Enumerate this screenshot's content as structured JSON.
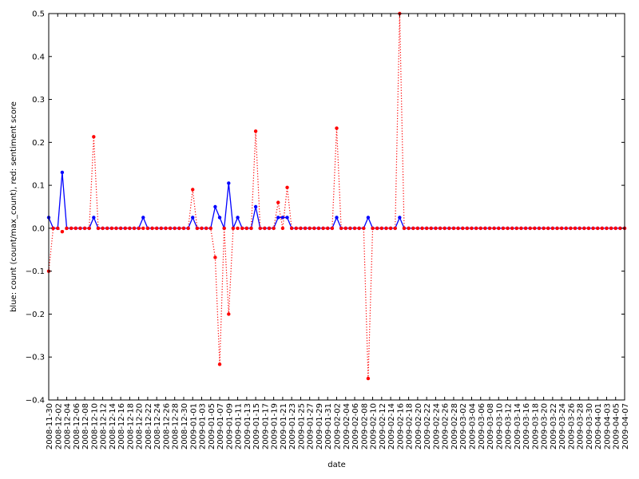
{
  "chart_data": {
    "type": "line",
    "xlabel": "date",
    "ylabel": "blue: count (count/max_count), red: sentiment score",
    "ylim": [
      -0.4,
      0.5
    ],
    "yticks": [
      "−0.4",
      "−0.3",
      "−0.2",
      "−0.1",
      "0.0",
      "0.1",
      "0.2",
      "0.3",
      "0.4",
      "0.5"
    ],
    "grid": false,
    "x_start": "2008-11-30",
    "x_end": "2009-04-07",
    "xtick_labels": [
      "2008-11-30",
      "2008-12-02",
      "2008-12-04",
      "2008-12-06",
      "2008-12-08",
      "2008-12-10",
      "2008-12-12",
      "2008-12-14",
      "2008-12-16",
      "2008-12-18",
      "2008-12-20",
      "2008-12-22",
      "2008-12-24",
      "2008-12-26",
      "2008-12-28",
      "2008-12-30",
      "2009-01-01",
      "2009-01-03",
      "2009-01-05",
      "2009-01-07",
      "2009-01-09",
      "2009-01-11",
      "2009-01-13",
      "2009-01-15",
      "2009-01-17",
      "2009-01-19",
      "2009-01-21",
      "2009-01-23",
      "2009-01-25",
      "2009-01-27",
      "2009-01-29",
      "2009-01-31",
      "2009-02-02",
      "2009-02-04",
      "2009-02-06",
      "2009-02-08",
      "2009-02-10",
      "2009-02-12",
      "2009-02-14",
      "2009-02-16",
      "2009-02-18",
      "2009-02-20",
      "2009-02-22",
      "2009-02-24",
      "2009-02-26",
      "2009-02-28",
      "2009-03-02",
      "2009-03-04",
      "2009-03-06",
      "2009-03-08",
      "2009-03-10",
      "2009-03-12",
      "2009-03-14",
      "2009-03-16",
      "2009-03-18",
      "2009-03-20",
      "2009-03-22",
      "2009-03-24",
      "2009-03-26",
      "2009-03-28",
      "2009-03-30",
      "2009-04-01",
      "2009-04-03",
      "2009-04-05",
      "2009-04-07"
    ],
    "series": [
      {
        "color": "#0000ff",
        "style": "solid",
        "points": [
          [
            "2008-11-30",
            0.025
          ],
          [
            "2008-12-03",
            0.13
          ],
          [
            "2008-12-10",
            0.025
          ],
          [
            "2008-12-21",
            0.025
          ],
          [
            "2009-01-01",
            0.025
          ],
          [
            "2009-01-06",
            0.05
          ],
          [
            "2009-01-07",
            0.025
          ],
          [
            "2009-01-09",
            0.105
          ],
          [
            "2009-01-11",
            0.025
          ],
          [
            "2009-01-15",
            0.05
          ],
          [
            "2009-01-20",
            0.025
          ],
          [
            "2009-01-21",
            0.025
          ],
          [
            "2009-01-22",
            0.025
          ],
          [
            "2009-02-02",
            0.025
          ],
          [
            "2009-02-09",
            0.025
          ],
          [
            "2009-02-16",
            0.025
          ]
        ]
      },
      {
        "color": "#ff0000",
        "style": "dotted",
        "points": [
          [
            "2008-11-30",
            -0.1
          ],
          [
            "2008-12-03",
            -0.008
          ],
          [
            "2008-12-10",
            0.213
          ],
          [
            "2009-01-01",
            0.09
          ],
          [
            "2009-01-06",
            -0.068
          ],
          [
            "2009-01-07",
            -0.317
          ],
          [
            "2009-01-09",
            -0.2
          ],
          [
            "2009-01-15",
            0.226
          ],
          [
            "2009-01-20",
            0.06
          ],
          [
            "2009-01-22",
            0.095
          ],
          [
            "2009-02-02",
            0.233
          ],
          [
            "2009-02-09",
            -0.35
          ],
          [
            "2009-02-16",
            0.5
          ]
        ]
      }
    ]
  }
}
